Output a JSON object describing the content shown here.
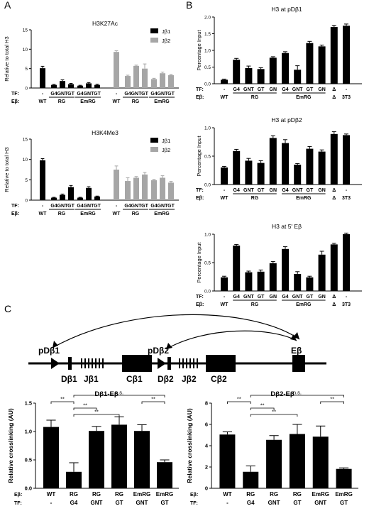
{
  "panels": {
    "A": "A",
    "B": "B",
    "C": "C"
  },
  "chart_data": [
    {
      "id": "A1",
      "type": "bar",
      "title": "H3K27Ac",
      "ylabel": "Relative to total H3",
      "ylim": [
        0,
        15
      ],
      "yticks": [
        0,
        5,
        10,
        15
      ],
      "legend": {
        "position": "top-right",
        "entries": [
          "Jβ1",
          "Jβ2"
        ]
      },
      "series": [
        {
          "name": "Jβ1",
          "color": "#000000",
          "tf": [
            "-",
            "G4",
            "GNT",
            "GT",
            "G4",
            "GNT",
            "GT"
          ],
          "values": [
            5.1,
            0.8,
            1.8,
            1.0,
            0.6,
            1.2,
            0.8
          ],
          "errors": [
            0.5,
            0.15,
            0.3,
            0.2,
            0.1,
            0.2,
            0.2
          ]
        },
        {
          "name": "Jβ2",
          "color": "#a6a6a6",
          "tf": [
            "-",
            "G4",
            "GNT",
            "GT",
            "G4",
            "GNT",
            "GT"
          ],
          "values": [
            9.3,
            3.1,
            5.7,
            5.0,
            2.3,
            3.8,
            3.3
          ],
          "errors": [
            0.3,
            0.2,
            0.2,
            1.2,
            0.2,
            0.3,
            0.2
          ]
        }
      ],
      "rows": {
        "tf": "TF:",
        "eb": "Eβ:"
      },
      "eb_groups": [
        "WT",
        "RG",
        "EmRG"
      ]
    },
    {
      "id": "A2",
      "type": "bar",
      "title": "H3K4Me3",
      "ylabel": "Relative to total H3",
      "ylim": [
        0,
        15
      ],
      "yticks": [
        0,
        5,
        10,
        15
      ],
      "legend": {
        "position": "top-right",
        "entries": [
          "Jβ1",
          "Jβ2"
        ]
      },
      "series": [
        {
          "name": "Jβ1",
          "color": "#000000",
          "tf": [
            "-",
            "G4",
            "GNT",
            "GT",
            "G4",
            "GNT",
            "GT"
          ],
          "values": [
            9.8,
            0.6,
            1.3,
            3.2,
            0.6,
            3.0,
            0.9
          ],
          "errors": [
            0.4,
            0.1,
            0.2,
            0.4,
            0.1,
            0.3,
            0.1
          ]
        },
        {
          "name": "Jβ2",
          "color": "#a6a6a6",
          "tf": [
            "-",
            "G4",
            "GNT",
            "GT",
            "G4",
            "GNT",
            "GT"
          ],
          "values": [
            7.5,
            4.7,
            5.5,
            6.3,
            4.9,
            5.5,
            4.3
          ],
          "errors": [
            0.9,
            0.8,
            0.3,
            0.5,
            0.2,
            0.5,
            0.3
          ]
        }
      ],
      "rows": {
        "tf": "TF:",
        "eb": "Eβ:"
      },
      "eb_groups": [
        "WT",
        "RG",
        "EmRG"
      ]
    },
    {
      "id": "B1",
      "type": "bar",
      "title": "H3 at pDβ1",
      "ylabel": "Percentage Input",
      "ylim": [
        0,
        2.0
      ],
      "yticks": [
        0.0,
        0.5,
        1.0,
        1.5,
        2.0
      ],
      "tf": [
        "-",
        "G4",
        "GNT",
        "GT",
        "GN",
        "G4",
        "GNT",
        "GT",
        "GN",
        "Δ",
        "-"
      ],
      "values": [
        0.12,
        0.72,
        0.47,
        0.44,
        0.78,
        0.92,
        0.42,
        1.22,
        1.12,
        1.7,
        1.74
      ],
      "errors": [
        0.02,
        0.04,
        0.06,
        0.04,
        0.03,
        0.04,
        0.12,
        0.05,
        0.04,
        0.05,
        0.05
      ],
      "rows": {
        "tf": "TF:",
        "eb": "Eβ:"
      },
      "eb_groups": [
        "WT",
        "RG",
        "EmRG",
        "3T3"
      ]
    },
    {
      "id": "B2",
      "type": "bar",
      "title": "H3 at pDβ2",
      "ylabel": "Percentage Input",
      "ylim": [
        0,
        1.0
      ],
      "yticks": [
        0.0,
        0.5,
        1.0
      ],
      "tf": [
        "-",
        "G4",
        "GNT",
        "GT",
        "GN",
        "G4",
        "GNT",
        "GT",
        "GN",
        "Δ",
        "-"
      ],
      "values": [
        0.3,
        0.59,
        0.42,
        0.38,
        0.82,
        0.73,
        0.35,
        0.63,
        0.58,
        0.89,
        0.87
      ],
      "errors": [
        0.02,
        0.03,
        0.04,
        0.04,
        0.04,
        0.06,
        0.02,
        0.04,
        0.03,
        0.04,
        0.02
      ],
      "rows": {
        "tf": "TF:",
        "eb": "Eβ:"
      },
      "eb_groups": [
        "WT",
        "RG",
        "EmRG",
        "3T3"
      ]
    },
    {
      "id": "B3",
      "type": "bar",
      "title": "H3 at 5' Eβ",
      "ylabel": "Percentage Input",
      "ylim": [
        0,
        1.0
      ],
      "yticks": [
        0.0,
        0.5,
        1.0
      ],
      "tf": [
        "-",
        "G4",
        "GNT",
        "GT",
        "GN",
        "G4",
        "GNT",
        "GT",
        "GN",
        "Δ",
        "-"
      ],
      "values": [
        0.24,
        0.8,
        0.33,
        0.34,
        0.49,
        0.74,
        0.3,
        0.24,
        0.64,
        0.82,
        1.0
      ],
      "errors": [
        0.02,
        0.02,
        0.02,
        0.03,
        0.03,
        0.04,
        0.04,
        0.02,
        0.06,
        0.02,
        0.02
      ],
      "rows": {
        "tf": "TF:",
        "eb": "Eβ:"
      },
      "eb_groups": [
        "WT",
        "RG",
        "EmRG",
        "3T3"
      ]
    },
    {
      "id": "C1",
      "type": "bar",
      "title": "Dβ1-Eβ",
      "ylabel": "Relative crosslinking (AU)",
      "ylim": [
        0,
        1.5
      ],
      "yticks": [
        0.0,
        0.5,
        1.0,
        1.5
      ],
      "eb": [
        "WT",
        "RG",
        "RG",
        "RG",
        "EmRG",
        "EmRG"
      ],
      "tf": [
        "-",
        "G4",
        "GNT",
        "GT",
        "GNT",
        "GT"
      ],
      "values": [
        1.08,
        0.29,
        1.01,
        1.12,
        1.01,
        0.46
      ],
      "errors": [
        0.12,
        0.16,
        0.08,
        0.14,
        0.11,
        0.04
      ],
      "significance": [
        {
          "from": 0,
          "to": 1,
          "label": "**"
        },
        {
          "from": 1,
          "to": 2,
          "label": "**"
        },
        {
          "from": 1,
          "to": 3,
          "label": "**"
        },
        {
          "from": 4,
          "to": 5,
          "label": "**"
        },
        {
          "from": 1,
          "to": 5,
          "label": "n.s."
        }
      ],
      "rows": {
        "eb": "Eβ:",
        "tf": "TF:"
      }
    },
    {
      "id": "C2",
      "type": "bar",
      "title": "Dβ2-Eβ",
      "ylabel": "Relative crosslinking (AU)",
      "ylim": [
        0,
        8
      ],
      "yticks": [
        0,
        2,
        4,
        6,
        8
      ],
      "eb": [
        "WT",
        "RG",
        "RG",
        "RG",
        "EmRG",
        "EmRG"
      ],
      "tf": [
        "-",
        "G4",
        "GNT",
        "GT",
        "GNT",
        "GT"
      ],
      "values": [
        5.05,
        1.55,
        4.55,
        5.1,
        4.85,
        1.82
      ],
      "errors": [
        0.25,
        0.55,
        0.4,
        0.9,
        1.0,
        0.1
      ],
      "significance": [
        {
          "from": 0,
          "to": 1,
          "label": "**"
        },
        {
          "from": 1,
          "to": 2,
          "label": "**"
        },
        {
          "from": 1,
          "to": 3,
          "label": "**"
        },
        {
          "from": 4,
          "to": 5,
          "label": "**"
        },
        {
          "from": 1,
          "to": 5,
          "label": "n.s."
        }
      ],
      "rows": {
        "eb": "Eβ:",
        "tf": "TF:"
      }
    }
  ],
  "locus": {
    "labels": [
      "pDβ1",
      "Dβ1",
      "Jβ1",
      "Cβ1",
      "pDβ2",
      "Dβ2",
      "Jβ2",
      "Cβ2",
      "Eβ"
    ]
  }
}
